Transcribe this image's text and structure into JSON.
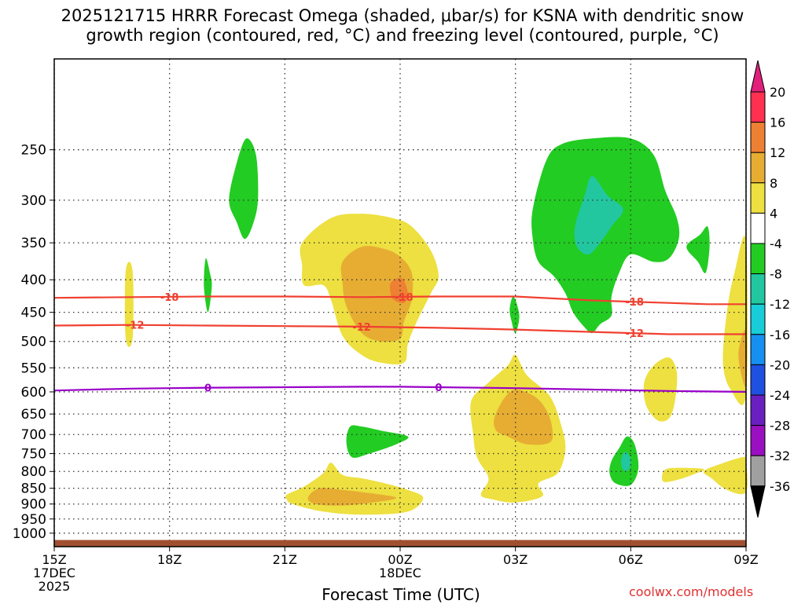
{
  "title_line1": "2025121715 HRRR Forecast Omega (shaded, μbar/s) for KSNA with dendritic snow",
  "title_line2": "growth region (contoured, red, °C) and freezing level (contoured, purple, °C)",
  "xlabel": "Forecast Time (UTC)",
  "credit": "coolwx.com/models",
  "colors": {
    "snow_growth": "#f04030",
    "freezing": "#9a00c8",
    "ground": "#a05030",
    "grid": "#333333"
  },
  "chart_data": {
    "type": "contour",
    "x_hours_range": [
      0,
      18
    ],
    "y_pressure_range_hPa": [
      1050,
      180
    ],
    "y_ticks": [
      250,
      300,
      350,
      400,
      450,
      500,
      550,
      600,
      650,
      700,
      750,
      800,
      850,
      900,
      950,
      1000
    ],
    "x_ticks": [
      {
        "h": 0,
        "lines": [
          "15Z",
          "17DEC",
          "2025"
        ]
      },
      {
        "h": 3,
        "lines": [
          "18Z"
        ]
      },
      {
        "h": 6,
        "lines": [
          "21Z"
        ]
      },
      {
        "h": 9,
        "lines": [
          "00Z",
          "18DEC"
        ]
      },
      {
        "h": 12,
        "lines": [
          "03Z"
        ]
      },
      {
        "h": 15,
        "lines": [
          "06Z"
        ]
      },
      {
        "h": 18,
        "lines": [
          "09Z"
        ]
      }
    ],
    "colorbar": {
      "labels": [
        "20",
        "16",
        "12",
        "8",
        "4",
        "-4",
        "-8",
        "-12",
        "-16",
        "-20",
        "-24",
        "-28",
        "-32",
        "-36"
      ],
      "colors": [
        "#ff3050",
        "#ee8033",
        "#e7ad33",
        "#ede040",
        "#ffffff",
        "#22cc22",
        "#22c7a0",
        "#18cdd8",
        "#1590f0",
        "#2050e0",
        "#6a20c0",
        "#9a10c0",
        "#a0a0a0"
      ],
      "top_arrow": "#e0207a",
      "bottom_arrow": "#000000"
    },
    "contours": [
      {
        "name": "snow-growth-18C",
        "label": "-18",
        "color": "#f04030",
        "points": [
          [
            0,
            427
          ],
          [
            2,
            426
          ],
          [
            4,
            425
          ],
          [
            6,
            425
          ],
          [
            8,
            426
          ],
          [
            10,
            425
          ],
          [
            12,
            425
          ],
          [
            13,
            428
          ],
          [
            14,
            431
          ],
          [
            15,
            433
          ],
          [
            16,
            435
          ],
          [
            17,
            437
          ],
          [
            18,
            437
          ]
        ],
        "label_at": [
          3.0,
          9.1,
          15.1
        ]
      },
      {
        "name": "snow-growth-12C",
        "label": "-12",
        "color": "#f04030",
        "points": [
          [
            0,
            472
          ],
          [
            2,
            471
          ],
          [
            4,
            472
          ],
          [
            6,
            473
          ],
          [
            8,
            474
          ],
          [
            10,
            476
          ],
          [
            12,
            479
          ],
          [
            14,
            483
          ],
          [
            16,
            487
          ],
          [
            18,
            487
          ]
        ],
        "label_at": [
          2.1,
          8.0,
          15.1
        ]
      },
      {
        "name": "freezing-level",
        "label": "0",
        "color": "#9a00c8",
        "points": [
          [
            0,
            597
          ],
          [
            2,
            593
          ],
          [
            3,
            592
          ],
          [
            4,
            591
          ],
          [
            6,
            590
          ],
          [
            8,
            589
          ],
          [
            9,
            589
          ],
          [
            10,
            590
          ],
          [
            12,
            592
          ],
          [
            14,
            595
          ],
          [
            16,
            598
          ],
          [
            18,
            600
          ]
        ],
        "label_at": [
          4.0,
          10.0
        ]
      }
    ],
    "shaded_regions": [
      {
        "name": "omega-plus4-left-strip",
        "value": "4",
        "color": "#ede040",
        "points": [
          [
            1.85,
            395
          ],
          [
            1.95,
            375
          ],
          [
            2.05,
            395
          ],
          [
            2.05,
            485
          ],
          [
            1.95,
            510
          ],
          [
            1.85,
            485
          ]
        ]
      },
      {
        "name": "omega-plus4-center-upper",
        "value": "4",
        "color": "#ede040",
        "points": [
          [
            6.45,
            350
          ],
          [
            7.2,
            320
          ],
          [
            8,
            315
          ],
          [
            8.8,
            320
          ],
          [
            9.3,
            330
          ],
          [
            9.8,
            360
          ],
          [
            10.0,
            395
          ],
          [
            9.8,
            420
          ],
          [
            9.4,
            470
          ],
          [
            9.2,
            505
          ],
          [
            9.1,
            540
          ],
          [
            8.5,
            540
          ],
          [
            8.0,
            525
          ],
          [
            7.5,
            490
          ],
          [
            7.2,
            430
          ],
          [
            7.0,
            408
          ],
          [
            6.5,
            408
          ],
          [
            6.45,
            380
          ]
        ]
      },
      {
        "name": "omega-plus8-center-upper",
        "value": "8",
        "color": "#e7ad33",
        "points": [
          [
            7.5,
            375
          ],
          [
            8,
            355
          ],
          [
            8.6,
            358
          ],
          [
            9.0,
            368
          ],
          [
            9.3,
            390
          ],
          [
            9.3,
            430
          ],
          [
            9.1,
            465
          ],
          [
            9.0,
            495
          ],
          [
            8.5,
            500
          ],
          [
            8.0,
            485
          ],
          [
            7.6,
            440
          ],
          [
            7.5,
            405
          ]
        ]
      },
      {
        "name": "omega-plus12-center-upper",
        "value": "12",
        "color": "#ee8033",
        "points": [
          [
            8.75,
            405
          ],
          [
            9.05,
            398
          ],
          [
            9.2,
            420
          ],
          [
            9.1,
            435
          ],
          [
            8.8,
            428
          ]
        ]
      },
      {
        "name": "omega-plus4-center-lower",
        "value": "4",
        "color": "#ede040",
        "points": [
          [
            6.05,
            870
          ],
          [
            6.5,
            845
          ],
          [
            7.0,
            805
          ],
          [
            7.2,
            775
          ],
          [
            7.5,
            810
          ],
          [
            8.0,
            820
          ],
          [
            8.6,
            835
          ],
          [
            9.2,
            855
          ],
          [
            9.6,
            880
          ],
          [
            9.2,
            925
          ],
          [
            8,
            935
          ],
          [
            7,
            925
          ],
          [
            6.2,
            900
          ],
          [
            6.05,
            885
          ]
        ]
      },
      {
        "name": "omega-plus8-center-lower",
        "value": "8",
        "color": "#e7ad33",
        "points": [
          [
            6.6,
            880
          ],
          [
            6.9,
            850
          ],
          [
            7.5,
            855
          ],
          [
            8.2,
            865
          ],
          [
            8.9,
            880
          ],
          [
            8.3,
            895
          ],
          [
            7.5,
            905
          ],
          [
            6.8,
            900
          ]
        ]
      },
      {
        "name": "omega-plus4-right-lower",
        "value": "4",
        "color": "#ede040",
        "points": [
          [
            10.85,
            620
          ],
          [
            11.3,
            580
          ],
          [
            11.8,
            545
          ],
          [
            12.0,
            525
          ],
          [
            12.3,
            565
          ],
          [
            12.9,
            610
          ],
          [
            13.2,
            680
          ],
          [
            13.3,
            740
          ],
          [
            13.1,
            805
          ],
          [
            12.6,
            835
          ],
          [
            12.7,
            875
          ],
          [
            12.0,
            895
          ],
          [
            11.4,
            885
          ],
          [
            11.1,
            870
          ],
          [
            11.3,
            820
          ],
          [
            11.0,
            760
          ],
          [
            10.9,
            700
          ]
        ]
      },
      {
        "name": "omega-plus8-right-lower",
        "value": "8",
        "color": "#e7ad33",
        "points": [
          [
            11.45,
            660
          ],
          [
            11.7,
            615
          ],
          [
            12.0,
            595
          ],
          [
            12.5,
            610
          ],
          [
            12.8,
            640
          ],
          [
            12.95,
            680
          ],
          [
            12.9,
            720
          ],
          [
            12.3,
            725
          ],
          [
            11.8,
            705
          ],
          [
            11.5,
            690
          ]
        ]
      },
      {
        "name": "omega-plus4-far-right-upper",
        "value": "4",
        "color": "#ede040",
        "points": [
          [
            15.35,
            580
          ],
          [
            15.6,
            545
          ],
          [
            16.0,
            530
          ],
          [
            16.2,
            560
          ],
          [
            16.15,
            620
          ],
          [
            16.0,
            660
          ],
          [
            15.7,
            665
          ],
          [
            15.4,
            630
          ]
        ]
      },
      {
        "name": "omega-plus4-far-right-low",
        "value": "4",
        "color": "#ede040",
        "points": [
          [
            15.85,
            800
          ],
          [
            16.1,
            790
          ],
          [
            16.9,
            793
          ],
          [
            16.6,
            810
          ],
          [
            16.2,
            825
          ],
          [
            15.85,
            830
          ]
        ]
      },
      {
        "name": "omega-plus4-far-right-mid",
        "value": "4",
        "color": "#ede040",
        "points": [
          [
            16.9,
            800
          ],
          [
            17.3,
            780
          ],
          [
            17.9,
            760
          ],
          [
            18,
            770
          ],
          [
            18,
            862
          ],
          [
            17.5,
            855
          ],
          [
            17.1,
            820
          ]
        ]
      },
      {
        "name": "omega-plus4-right-edge",
        "value": "4",
        "color": "#ede040",
        "points": [
          [
            18,
            348
          ],
          [
            17.7,
            390
          ],
          [
            17.5,
            450
          ],
          [
            17.4,
            540
          ],
          [
            17.6,
            595
          ],
          [
            18,
            605
          ]
        ]
      },
      {
        "name": "omega-plus8-right-edge",
        "value": "8",
        "color": "#e7ad33",
        "points": [
          [
            18,
            480
          ],
          [
            17.8,
            525
          ],
          [
            18,
            590
          ]
        ]
      },
      {
        "name": "omega-minus4-blob-a",
        "value": "-4",
        "color": "#22cc22",
        "points": [
          [
            4.55,
            300
          ],
          [
            4.75,
            262
          ],
          [
            5.0,
            240
          ],
          [
            5.25,
            255
          ],
          [
            5.3,
            300
          ],
          [
            5.15,
            330
          ],
          [
            4.95,
            345
          ],
          [
            4.75,
            325
          ]
        ]
      },
      {
        "name": "omega-minus4-blob-b",
        "value": "-4",
        "color": "#22cc22",
        "points": [
          [
            3.9,
            390
          ],
          [
            3.95,
            370
          ],
          [
            4.05,
            390
          ],
          [
            4.1,
            410
          ],
          [
            4.0,
            450
          ],
          [
            3.9,
            415
          ]
        ]
      },
      {
        "name": "omega-minus4-blob-c",
        "value": "-4",
        "color": "#22cc22",
        "points": [
          [
            7.6,
            720
          ],
          [
            7.7,
            680
          ],
          [
            8.0,
            680
          ],
          [
            8.5,
            690
          ],
          [
            9.2,
            705
          ],
          [
            8.9,
            725
          ],
          [
            8.2,
            750
          ],
          [
            7.75,
            760
          ]
        ]
      },
      {
        "name": "omega-minus4-blob-d",
        "value": "-4",
        "color": "#22cc22",
        "points": [
          [
            11.85,
            445
          ],
          [
            11.95,
            425
          ],
          [
            12.1,
            455
          ],
          [
            12.0,
            485
          ],
          [
            11.9,
            465
          ]
        ]
      },
      {
        "name": "omega-minus4-large",
        "value": "-4",
        "color": "#22cc22",
        "points": [
          [
            12.45,
            310
          ],
          [
            12.8,
            260
          ],
          [
            13.2,
            245
          ],
          [
            14.0,
            240
          ],
          [
            15.0,
            240
          ],
          [
            15.6,
            255
          ],
          [
            15.9,
            290
          ],
          [
            16.2,
            320
          ],
          [
            16.25,
            345
          ],
          [
            16.0,
            370
          ],
          [
            15.6,
            375
          ],
          [
            15.0,
            365
          ],
          [
            14.7,
            390
          ],
          [
            14.5,
            425
          ],
          [
            14.5,
            455
          ],
          [
            14.2,
            470
          ],
          [
            14.0,
            485
          ],
          [
            13.8,
            475
          ],
          [
            13.5,
            450
          ],
          [
            13.3,
            420
          ],
          [
            13.0,
            395
          ],
          [
            12.6,
            375
          ],
          [
            12.45,
            345
          ]
        ]
      },
      {
        "name": "omega-minus8-large",
        "value": "-8",
        "color": "#22c7a0",
        "points": [
          [
            13.55,
            330
          ],
          [
            13.8,
            295
          ],
          [
            14.0,
            275
          ],
          [
            14.4,
            295
          ],
          [
            14.8,
            310
          ],
          [
            14.5,
            330
          ],
          [
            14.2,
            350
          ],
          [
            13.9,
            365
          ],
          [
            13.6,
            355
          ]
        ]
      },
      {
        "name": "omega-minus4-small-right",
        "value": "-4",
        "color": "#22cc22",
        "points": [
          [
            16.45,
            355
          ],
          [
            16.8,
            340
          ],
          [
            17.0,
            330
          ],
          [
            17.05,
            355
          ],
          [
            16.95,
            390
          ],
          [
            16.75,
            375
          ]
        ]
      },
      {
        "name": "omega-minus4-lower-mid",
        "value": "-4",
        "color": "#22cc22",
        "points": [
          [
            14.5,
            770
          ],
          [
            14.7,
            735
          ],
          [
            14.9,
            705
          ],
          [
            15.1,
            725
          ],
          [
            15.2,
            790
          ],
          [
            15.0,
            840
          ],
          [
            14.6,
            835
          ],
          [
            14.45,
            805
          ]
        ]
      },
      {
        "name": "omega-minus8-lower-mid",
        "value": "-8",
        "color": "#22c7a0",
        "points": [
          [
            14.75,
            770
          ],
          [
            14.85,
            745
          ],
          [
            15.0,
            765
          ],
          [
            14.95,
            795
          ],
          [
            14.8,
            795
          ]
        ]
      }
    ],
    "ground_pressure_hPa": 1025
  }
}
